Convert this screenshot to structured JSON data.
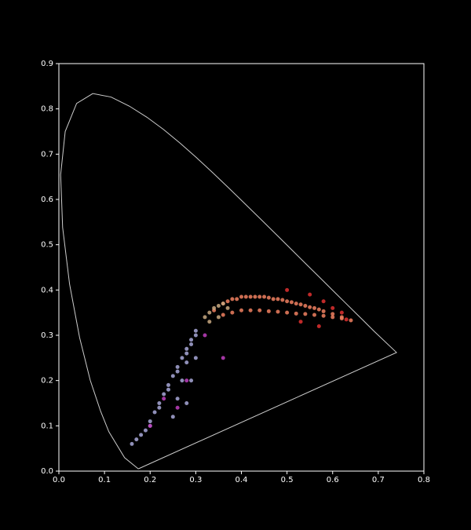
{
  "chart_data": {
    "type": "scatter",
    "xlim": [
      0,
      0.8
    ],
    "ylim": [
      0,
      0.9
    ],
    "xticks": [
      {
        "value": 0,
        "label": "0.0"
      },
      0.1,
      0.2,
      0.3,
      0.4,
      0.5,
      0.6,
      0.7,
      0.8
    ],
    "yticks": [
      {
        "value": 0,
        "label": "0.0"
      },
      0.1,
      0.2,
      0.3,
      0.4,
      0.5,
      0.6,
      0.7,
      0.8,
      0.9
    ],
    "locus": {
      "color": "#cccccc",
      "x": [
        0.1741,
        0.144,
        0.1096,
        0.0913,
        0.0687,
        0.0454,
        0.0235,
        0.0082,
        0.0039,
        0.0139,
        0.0389,
        0.0743,
        0.1142,
        0.1547,
        0.1929,
        0.2296,
        0.2658,
        0.3016,
        0.3373,
        0.3731,
        0.4087,
        0.4441,
        0.4788,
        0.5125,
        0.5448,
        0.5752,
        0.6029,
        0.627,
        0.6482,
        0.6658,
        0.6915,
        0.74,
        0.1741
      ],
      "y": [
        0.005,
        0.0297,
        0.0868,
        0.1327,
        0.2007,
        0.295,
        0.4127,
        0.5384,
        0.6548,
        0.7502,
        0.812,
        0.8338,
        0.8262,
        0.8059,
        0.7816,
        0.7543,
        0.7243,
        0.6923,
        0.6589,
        0.6245,
        0.5896,
        0.5547,
        0.5202,
        0.4866,
        0.4544,
        0.4242,
        0.3965,
        0.3725,
        0.3514,
        0.334,
        0.3083,
        0.262,
        0.005
      ]
    },
    "series": [
      {
        "color": "#f08060",
        "x": [
          0.34,
          0.36,
          0.37,
          0.38,
          0.39,
          0.4,
          0.41,
          0.42,
          0.43,
          0.44,
          0.45,
          0.46,
          0.47,
          0.48,
          0.49,
          0.5,
          0.51,
          0.52,
          0.53,
          0.54,
          0.55,
          0.56,
          0.57,
          0.58,
          0.6,
          0.62,
          0.64,
          0.36,
          0.38,
          0.4,
          0.42,
          0.44,
          0.46,
          0.48,
          0.5,
          0.52,
          0.54,
          0.56,
          0.58,
          0.6,
          0.62
        ],
        "y": [
          0.355,
          0.37,
          0.375,
          0.38,
          0.38,
          0.385,
          0.385,
          0.385,
          0.385,
          0.385,
          0.385,
          0.383,
          0.38,
          0.38,
          0.378,
          0.375,
          0.373,
          0.37,
          0.368,
          0.365,
          0.362,
          0.36,
          0.357,
          0.353,
          0.347,
          0.34,
          0.333,
          0.345,
          0.35,
          0.355,
          0.355,
          0.355,
          0.353,
          0.352,
          0.35,
          0.348,
          0.347,
          0.345,
          0.343,
          0.34,
          0.337
        ]
      },
      {
        "color": "#c8a880",
        "x": [
          0.32,
          0.33,
          0.34,
          0.35,
          0.36,
          0.33,
          0.35,
          0.37
        ],
        "y": [
          0.34,
          0.35,
          0.36,
          0.365,
          0.37,
          0.33,
          0.34,
          0.36
        ]
      },
      {
        "color": "#a8a8d8",
        "x": [
          0.3,
          0.29,
          0.28,
          0.27,
          0.26,
          0.25,
          0.24,
          0.23,
          0.22,
          0.21,
          0.2,
          0.19,
          0.18,
          0.17,
          0.16,
          0.3,
          0.28,
          0.26,
          0.24,
          0.22,
          0.2,
          0.29,
          0.28,
          0.27,
          0.26,
          0.25,
          0.3,
          0.29,
          0.28
        ],
        "y": [
          0.31,
          0.29,
          0.27,
          0.25,
          0.23,
          0.21,
          0.19,
          0.17,
          0.15,
          0.13,
          0.11,
          0.09,
          0.08,
          0.07,
          0.06,
          0.3,
          0.26,
          0.22,
          0.18,
          0.14,
          0.1,
          0.28,
          0.24,
          0.2,
          0.16,
          0.12,
          0.25,
          0.2,
          0.15
        ]
      },
      {
        "color": "#e03030",
        "x": [
          0.5,
          0.55,
          0.58,
          0.6,
          0.62,
          0.63,
          0.53,
          0.57
        ],
        "y": [
          0.4,
          0.39,
          0.375,
          0.36,
          0.35,
          0.335,
          0.33,
          0.32
        ]
      },
      {
        "color": "#c040c0",
        "x": [
          0.2,
          0.23,
          0.26,
          0.28,
          0.32,
          0.36
        ],
        "y": [
          0.1,
          0.16,
          0.14,
          0.2,
          0.3,
          0.25
        ]
      }
    ]
  }
}
